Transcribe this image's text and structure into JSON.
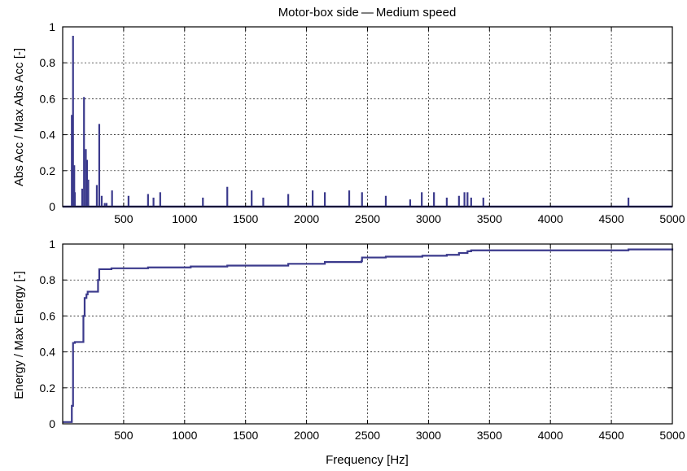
{
  "colors": {
    "series": "#3b3a8c",
    "background": "#ffffff",
    "axes": "#000000"
  },
  "chart_data": [
    {
      "type": "line",
      "title": "Motor-box side — Medium speed",
      "xlabel": "",
      "ylabel": "Abs Acc / Max Abs Acc [-]",
      "xlim": [
        0,
        5000
      ],
      "ylim": [
        0,
        1
      ],
      "grid": true,
      "xticks": [
        "500",
        "1000",
        "1500",
        "2000",
        "2500",
        "3000",
        "3500",
        "4000",
        "4500",
        "5000"
      ],
      "yticks": [
        "0",
        "0.2",
        "0.4",
        "0.6",
        "0.8",
        "1"
      ],
      "series": [
        {
          "style": "spikes",
          "points": [
            [
              75,
              0.51
            ],
            [
              85,
              0.95
            ],
            [
              95,
              0.23
            ],
            [
              100,
              0.08
            ],
            [
              160,
              0.1
            ],
            [
              175,
              0.61
            ],
            [
              190,
              0.32
            ],
            [
              200,
              0.26
            ],
            [
              210,
              0.15
            ],
            [
              280,
              0.12
            ],
            [
              300,
              0.46
            ],
            [
              320,
              0.06
            ],
            [
              345,
              0.02
            ],
            [
              360,
              0.02
            ],
            [
              405,
              0.09
            ],
            [
              540,
              0.06
            ],
            [
              700,
              0.07
            ],
            [
              745,
              0.05
            ],
            [
              800,
              0.08
            ],
            [
              1150,
              0.05
            ],
            [
              1350,
              0.11
            ],
            [
              1550,
              0.09
            ],
            [
              1645,
              0.05
            ],
            [
              1850,
              0.07
            ],
            [
              2050,
              0.09
            ],
            [
              2150,
              0.08
            ],
            [
              2350,
              0.09
            ],
            [
              2455,
              0.08
            ],
            [
              2650,
              0.06
            ],
            [
              2850,
              0.04
            ],
            [
              2945,
              0.08
            ],
            [
              3045,
              0.08
            ],
            [
              3150,
              0.05
            ],
            [
              3250,
              0.06
            ],
            [
              3295,
              0.08
            ],
            [
              3320,
              0.08
            ],
            [
              3350,
              0.05
            ],
            [
              3450,
              0.05
            ],
            [
              4640,
              0.05
            ]
          ]
        }
      ]
    },
    {
      "type": "line",
      "title": "",
      "xlabel": "Frequency [Hz]",
      "ylabel": "Energy / Max Energy [-]",
      "xlim": [
        0,
        5000
      ],
      "ylim": [
        0,
        1
      ],
      "grid": true,
      "xticks": [
        "500",
        "1000",
        "1500",
        "2000",
        "2500",
        "3000",
        "3500",
        "4000",
        "4500",
        "5000"
      ],
      "yticks": [
        "0",
        "0.2",
        "0.4",
        "0.6",
        "0.8",
        "1"
      ],
      "series": [
        {
          "style": "step",
          "x": [
            0,
            75,
            85,
            100,
            170,
            180,
            195,
            205,
            290,
            300,
            400,
            700,
            1050,
            1350,
            1850,
            2150,
            2450,
            2455,
            2650,
            2950,
            3150,
            3250,
            3320,
            3350,
            4640,
            5000
          ],
          "y": [
            0.01,
            0.1,
            0.45,
            0.455,
            0.6,
            0.7,
            0.72,
            0.735,
            0.8,
            0.86,
            0.865,
            0.87,
            0.875,
            0.88,
            0.89,
            0.9,
            0.905,
            0.925,
            0.93,
            0.935,
            0.94,
            0.95,
            0.96,
            0.965,
            0.97,
            0.975
          ]
        }
      ]
    }
  ]
}
